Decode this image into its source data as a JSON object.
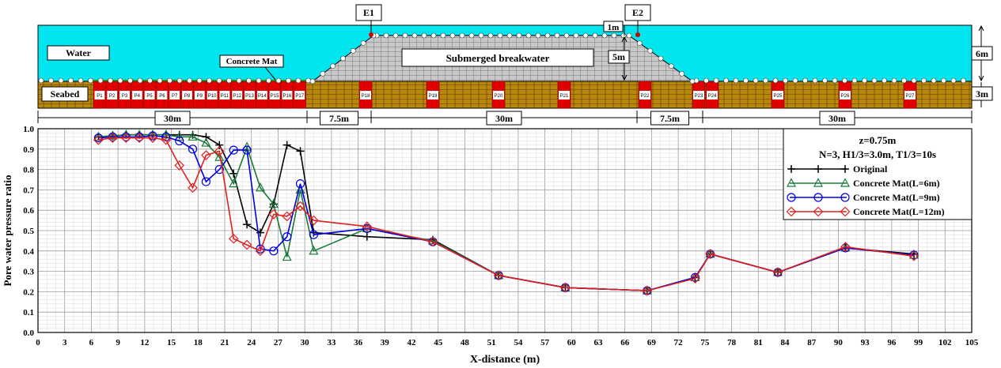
{
  "schematic": {
    "water_label": "Water",
    "seabed_label": "Seabed",
    "concrete_mat_label": "Concrete Mat",
    "breakwater_label": "Submerged breakwater",
    "gauges": [
      "E1",
      "E2"
    ],
    "dims": {
      "crest_depth": "1m",
      "breakwater_height": "5m",
      "water_depth": "6m",
      "seabed_depth": "3m"
    },
    "spans": [
      "30m",
      "7.5m",
      "30m",
      "7.5m",
      "30m"
    ],
    "probes_left": [
      "P1",
      "P2",
      "P3",
      "P4",
      "P5",
      "P6",
      "P7",
      "P8",
      "P9",
      "P10",
      "P11",
      "P12",
      "P13",
      "P14",
      "P15",
      "P16",
      "P17"
    ],
    "probes_right": [
      "P18",
      "P19",
      "P20",
      "P21",
      "P22",
      "P23",
      "P24",
      "P25",
      "P26",
      "P27"
    ],
    "colors": {
      "water": "#00e5ee",
      "seabed": "#b8860b",
      "breakwater": "#c8c8c8",
      "mat": "#e00000",
      "mat_top": "#00b000"
    }
  },
  "chart_data": {
    "type": "line",
    "xlabel": "X-distance (m)",
    "ylabel": "Pore water pressure ratio",
    "xlim": [
      0,
      105
    ],
    "ylim": [
      0,
      1.0
    ],
    "xticks": [
      0,
      3,
      6,
      9,
      12,
      15,
      18,
      21,
      24,
      27,
      30,
      33,
      36,
      39,
      42,
      45,
      48,
      51,
      54,
      57,
      60,
      63,
      66,
      69,
      72,
      75,
      78,
      81,
      84,
      87,
      90,
      93,
      96,
      99,
      102,
      105
    ],
    "yticks": [
      0.0,
      0.1,
      0.2,
      0.3,
      0.4,
      0.5,
      0.6,
      0.7,
      0.8,
      0.9,
      1.0
    ],
    "grid": true,
    "legend_position": "top-right",
    "annotations": {
      "depth": "z=0.75m",
      "wave_conditions": "N=3, H1/3=3.0m, T1/3=10s"
    },
    "series": [
      {
        "name": "Original",
        "color": "#000000",
        "marker": "plus",
        "x": [
          6.8,
          8.4,
          9.9,
          11.4,
          12.9,
          14.4,
          15.9,
          17.4,
          18.9,
          20.4,
          22.0,
          23.5,
          25.0,
          26.5,
          28.0,
          29.5,
          31.0,
          37.0,
          44.4,
          51.8,
          59.3,
          68.5,
          73.9,
          75.6,
          83.2,
          90.8,
          98.5
        ],
        "y": [
          0.96,
          0.965,
          0.97,
          0.97,
          0.97,
          0.97,
          0.97,
          0.97,
          0.96,
          0.92,
          0.78,
          0.53,
          0.49,
          0.63,
          0.92,
          0.89,
          0.49,
          0.47,
          0.455,
          0.28,
          0.22,
          0.205,
          0.27,
          0.385,
          0.295,
          0.415,
          0.385
        ]
      },
      {
        "name": "Concrete Mat(L=6m)",
        "color": "#1a7a3a",
        "marker": "triangle",
        "x": [
          6.8,
          8.4,
          9.9,
          11.4,
          12.9,
          14.4,
          15.9,
          17.4,
          18.9,
          20.4,
          22.0,
          23.5,
          25.0,
          26.5,
          28.0,
          29.5,
          31.0,
          37.0,
          44.4,
          51.8,
          59.3,
          68.5,
          73.9,
          75.6,
          83.2,
          90.8,
          98.5
        ],
        "y": [
          0.96,
          0.965,
          0.97,
          0.97,
          0.97,
          0.97,
          0.96,
          0.96,
          0.93,
          0.86,
          0.73,
          0.91,
          0.71,
          0.63,
          0.37,
          0.7,
          0.4,
          0.51,
          0.45,
          0.28,
          0.22,
          0.205,
          0.27,
          0.385,
          0.295,
          0.415,
          0.38
        ]
      },
      {
        "name": "Concrete Mat(L=9m)",
        "color": "#0000e0",
        "marker": "circle",
        "x": [
          6.8,
          8.4,
          9.9,
          11.4,
          12.9,
          14.4,
          15.9,
          17.4,
          18.9,
          20.4,
          22.0,
          23.5,
          25.0,
          26.5,
          28.0,
          29.5,
          31.0,
          37.0,
          44.4,
          51.8,
          59.3,
          68.5,
          73.9,
          75.6,
          83.2,
          90.8,
          98.5
        ],
        "y": [
          0.955,
          0.96,
          0.96,
          0.96,
          0.965,
          0.96,
          0.94,
          0.9,
          0.74,
          0.8,
          0.895,
          0.895,
          0.41,
          0.4,
          0.47,
          0.73,
          0.48,
          0.51,
          0.445,
          0.28,
          0.22,
          0.205,
          0.27,
          0.385,
          0.295,
          0.415,
          0.38
        ]
      },
      {
        "name": "Concrete Mat(L=12m)",
        "color": "#e02020",
        "marker": "diamond",
        "x": [
          6.8,
          8.4,
          9.9,
          11.4,
          12.9,
          14.4,
          15.9,
          17.4,
          18.9,
          20.4,
          22.0,
          23.5,
          25.0,
          26.5,
          28.0,
          29.5,
          31.0,
          37.0,
          44.4,
          51.8,
          59.3,
          68.5,
          73.9,
          75.6,
          83.2,
          90.8,
          98.5
        ],
        "y": [
          0.945,
          0.955,
          0.955,
          0.955,
          0.955,
          0.945,
          0.82,
          0.71,
          0.87,
          0.89,
          0.46,
          0.43,
          0.4,
          0.58,
          0.57,
          0.62,
          0.55,
          0.52,
          0.445,
          0.28,
          0.22,
          0.205,
          0.265,
          0.385,
          0.295,
          0.42,
          0.375
        ]
      }
    ]
  }
}
